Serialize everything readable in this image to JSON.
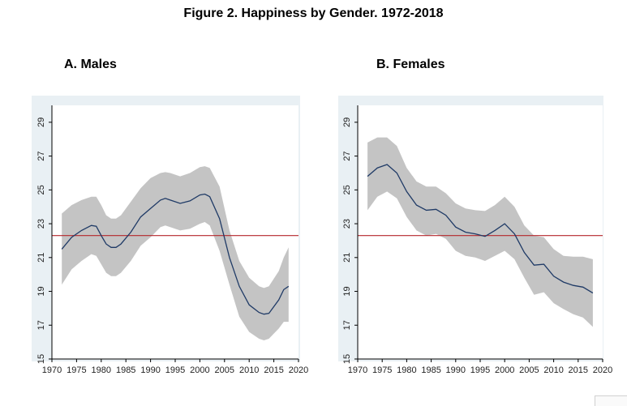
{
  "figure": {
    "title": "Figure 2. Happiness by Gender. 1972-2018"
  },
  "colors": {
    "plot_background": "#e9f0f4",
    "plot_area": "#ffffff",
    "ci_band": "#c4c4c4",
    "line": "#1f3a66",
    "reference": "#b5262b",
    "axis": "#000000"
  },
  "chart_data": [
    {
      "type": "line",
      "title": "A. Males",
      "xlabel": "",
      "ylabel": "",
      "xlim": [
        1970,
        2020
      ],
      "ylim": [
        15,
        30
      ],
      "xticks": [
        "1970",
        "1975",
        "1980",
        "1985",
        "1990",
        "1995",
        "2000",
        "2005",
        "2010",
        "2015",
        "2020"
      ],
      "yticks": [
        "15",
        "17",
        "19",
        "21",
        "23",
        "25",
        "27",
        "29"
      ],
      "reference_line": 22.3,
      "series": [
        {
          "name": "estimate",
          "x": [
            1972,
            1974,
            1976,
            1978,
            1979,
            1980,
            1981,
            1982,
            1983,
            1984,
            1986,
            1988,
            1990,
            1992,
            1993,
            1994,
            1996,
            1998,
            2000,
            2001,
            2002,
            2004,
            2006,
            2008,
            2010,
            2012,
            2013,
            2014,
            2016,
            2017,
            2018
          ],
          "values": [
            21.5,
            22.2,
            22.6,
            22.9,
            22.85,
            22.3,
            21.8,
            21.6,
            21.6,
            21.8,
            22.5,
            23.4,
            23.9,
            24.4,
            24.5,
            24.4,
            24.2,
            24.35,
            24.7,
            24.75,
            24.6,
            23.3,
            21.0,
            19.3,
            18.2,
            17.75,
            17.65,
            17.7,
            18.5,
            19.1,
            19.3
          ]
        },
        {
          "name": "ci_upper",
          "x": [
            1972,
            1974,
            1976,
            1978,
            1979,
            1980,
            1981,
            1982,
            1983,
            1984,
            1986,
            1988,
            1990,
            1992,
            1993,
            1994,
            1996,
            1998,
            2000,
            2001,
            2002,
            2004,
            2006,
            2008,
            2010,
            2012,
            2013,
            2014,
            2016,
            2017,
            2018
          ],
          "values": [
            23.6,
            24.1,
            24.4,
            24.6,
            24.6,
            24.1,
            23.5,
            23.3,
            23.3,
            23.5,
            24.3,
            25.1,
            25.7,
            26.0,
            26.05,
            26.0,
            25.8,
            26.0,
            26.35,
            26.4,
            26.3,
            25.2,
            22.6,
            20.8,
            19.8,
            19.3,
            19.2,
            19.3,
            20.2,
            21.0,
            21.6
          ]
        },
        {
          "name": "ci_lower",
          "x": [
            1972,
            1974,
            1976,
            1978,
            1979,
            1980,
            1981,
            1982,
            1983,
            1984,
            1986,
            1988,
            1990,
            1992,
            1993,
            1994,
            1996,
            1998,
            2000,
            2001,
            2002,
            2004,
            2006,
            2008,
            2010,
            2012,
            2013,
            2014,
            2016,
            2017,
            2018
          ],
          "values": [
            19.4,
            20.3,
            20.8,
            21.2,
            21.1,
            20.6,
            20.1,
            19.9,
            19.9,
            20.1,
            20.8,
            21.7,
            22.2,
            22.8,
            22.9,
            22.8,
            22.6,
            22.7,
            23.0,
            23.1,
            22.9,
            21.4,
            19.4,
            17.5,
            16.6,
            16.2,
            16.1,
            16.2,
            16.8,
            17.2,
            17.2
          ]
        }
      ]
    },
    {
      "type": "line",
      "title": "B. Females",
      "xlabel": "",
      "ylabel": "",
      "xlim": [
        1970,
        2020
      ],
      "ylim": [
        15,
        30
      ],
      "xticks": [
        "1970",
        "1975",
        "1980",
        "1985",
        "1990",
        "1995",
        "2000",
        "2005",
        "2010",
        "2015",
        "2020"
      ],
      "yticks": [
        "15",
        "17",
        "19",
        "21",
        "23",
        "25",
        "27",
        "29"
      ],
      "reference_line": 22.3,
      "series": [
        {
          "name": "estimate",
          "x": [
            1972,
            1974,
            1976,
            1978,
            1980,
            1982,
            1984,
            1986,
            1988,
            1990,
            1992,
            1994,
            1996,
            1998,
            2000,
            2002,
            2004,
            2006,
            2008,
            2010,
            2012,
            2014,
            2016,
            2018
          ],
          "values": [
            25.8,
            26.3,
            26.5,
            26.0,
            24.9,
            24.1,
            23.8,
            23.85,
            23.5,
            22.8,
            22.5,
            22.4,
            22.25,
            22.6,
            23.0,
            22.4,
            21.3,
            20.55,
            20.6,
            19.9,
            19.55,
            19.35,
            19.25,
            18.9
          ]
        },
        {
          "name": "ci_upper",
          "x": [
            1972,
            1974,
            1976,
            1978,
            1980,
            1982,
            1984,
            1986,
            1988,
            1990,
            1992,
            1994,
            1996,
            1998,
            2000,
            2002,
            2004,
            2006,
            2008,
            2010,
            2012,
            2014,
            2016,
            2018
          ],
          "values": [
            27.8,
            28.1,
            28.1,
            27.6,
            26.3,
            25.5,
            25.2,
            25.2,
            24.8,
            24.2,
            23.9,
            23.8,
            23.75,
            24.1,
            24.6,
            24.0,
            22.9,
            22.3,
            22.2,
            21.5,
            21.1,
            21.05,
            21.05,
            20.9
          ]
        },
        {
          "name": "ci_lower",
          "x": [
            1972,
            1974,
            1976,
            1978,
            1980,
            1982,
            1984,
            1986,
            1988,
            1990,
            1992,
            1994,
            1996,
            1998,
            2000,
            2002,
            2004,
            2006,
            2008,
            2010,
            2012,
            2014,
            2016,
            2018
          ],
          "values": [
            23.8,
            24.6,
            24.9,
            24.5,
            23.4,
            22.6,
            22.3,
            22.4,
            22.1,
            21.4,
            21.1,
            21.0,
            20.8,
            21.1,
            21.4,
            20.9,
            19.8,
            18.8,
            18.95,
            18.3,
            17.95,
            17.65,
            17.45,
            16.9
          ]
        }
      ]
    }
  ]
}
